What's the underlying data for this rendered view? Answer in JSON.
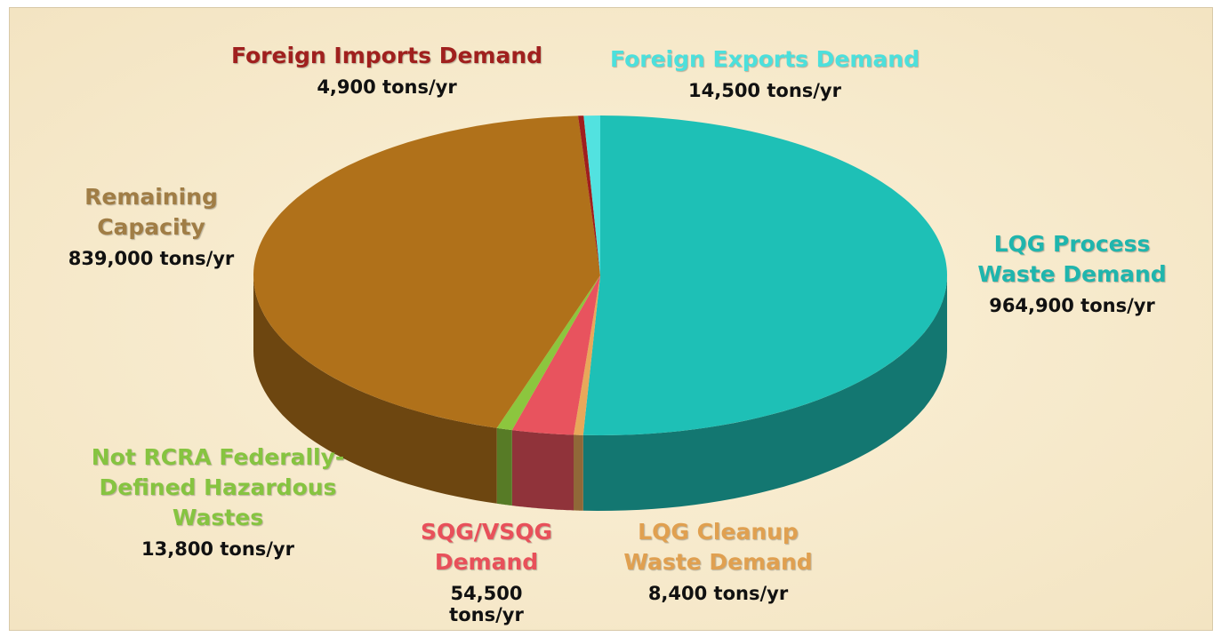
{
  "chart_data": {
    "type": "pie",
    "categories": [
      "LQG Process Waste Demand",
      "LQG Cleanup Waste Demand",
      "SQG/VSQG Demand",
      "Not RCRA Federally-Defined Hazardous Wastes",
      "Remaining Capacity",
      "Foreign Imports Demand",
      "Foreign Exports Demand"
    ],
    "values": [
      964900,
      8400,
      54500,
      13800,
      839000,
      4900,
      14500
    ],
    "value_labels": [
      "964,900 tons/yr",
      "8,400 tons/yr",
      "54,500 tons/yr",
      "13,800 tons/yr",
      "839,000 tons/yr",
      "4,900 tons/yr",
      "14,500 tons/yr"
    ],
    "colors": [
      "#1ec0b6",
      "#e8a85a",
      "#e8535e",
      "#8cc63e",
      "#b0711a",
      "#a01e1e",
      "#52e2e0"
    ]
  }
}
